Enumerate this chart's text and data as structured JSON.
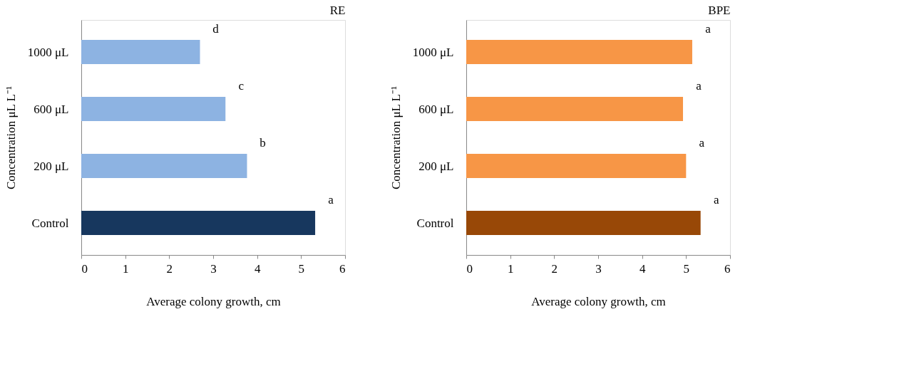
{
  "chart_data": [
    {
      "type": "bar",
      "orientation": "horizontal",
      "title": "RE",
      "xlabel": "Average colony growth, cm",
      "ylabel": "Concentration μL L⁻¹",
      "categories": [
        "1000 μL",
        "600 μL",
        "200 μL",
        "Control"
      ],
      "values": [
        2.7,
        3.28,
        3.77,
        5.32
      ],
      "colors": [
        "#8db3e2",
        "#8db3e2",
        "#8db3e2",
        "#17375e"
      ],
      "xlim": [
        0,
        6
      ],
      "xticks": [
        0,
        1,
        2,
        3,
        4,
        5,
        6
      ],
      "grid": false,
      "annotations": [
        "d",
        "c",
        "b",
        "a"
      ]
    },
    {
      "type": "bar",
      "orientation": "horizontal",
      "title": "BPE",
      "xlabel": "Average colony growth, cm",
      "ylabel": "Concentration μL L⁻¹",
      "categories": [
        "1000 μL",
        "600 μL",
        "200 μL",
        "Control"
      ],
      "values": [
        5.14,
        4.93,
        5.0,
        5.33
      ],
      "colors": [
        "#f79646",
        "#f79646",
        "#f79646",
        "#984807"
      ],
      "xlim": [
        0,
        6
      ],
      "xticks": [
        0,
        1,
        2,
        3,
        4,
        5,
        6
      ],
      "grid": false,
      "annotations": [
        "a",
        "a",
        "a",
        "a"
      ]
    }
  ]
}
